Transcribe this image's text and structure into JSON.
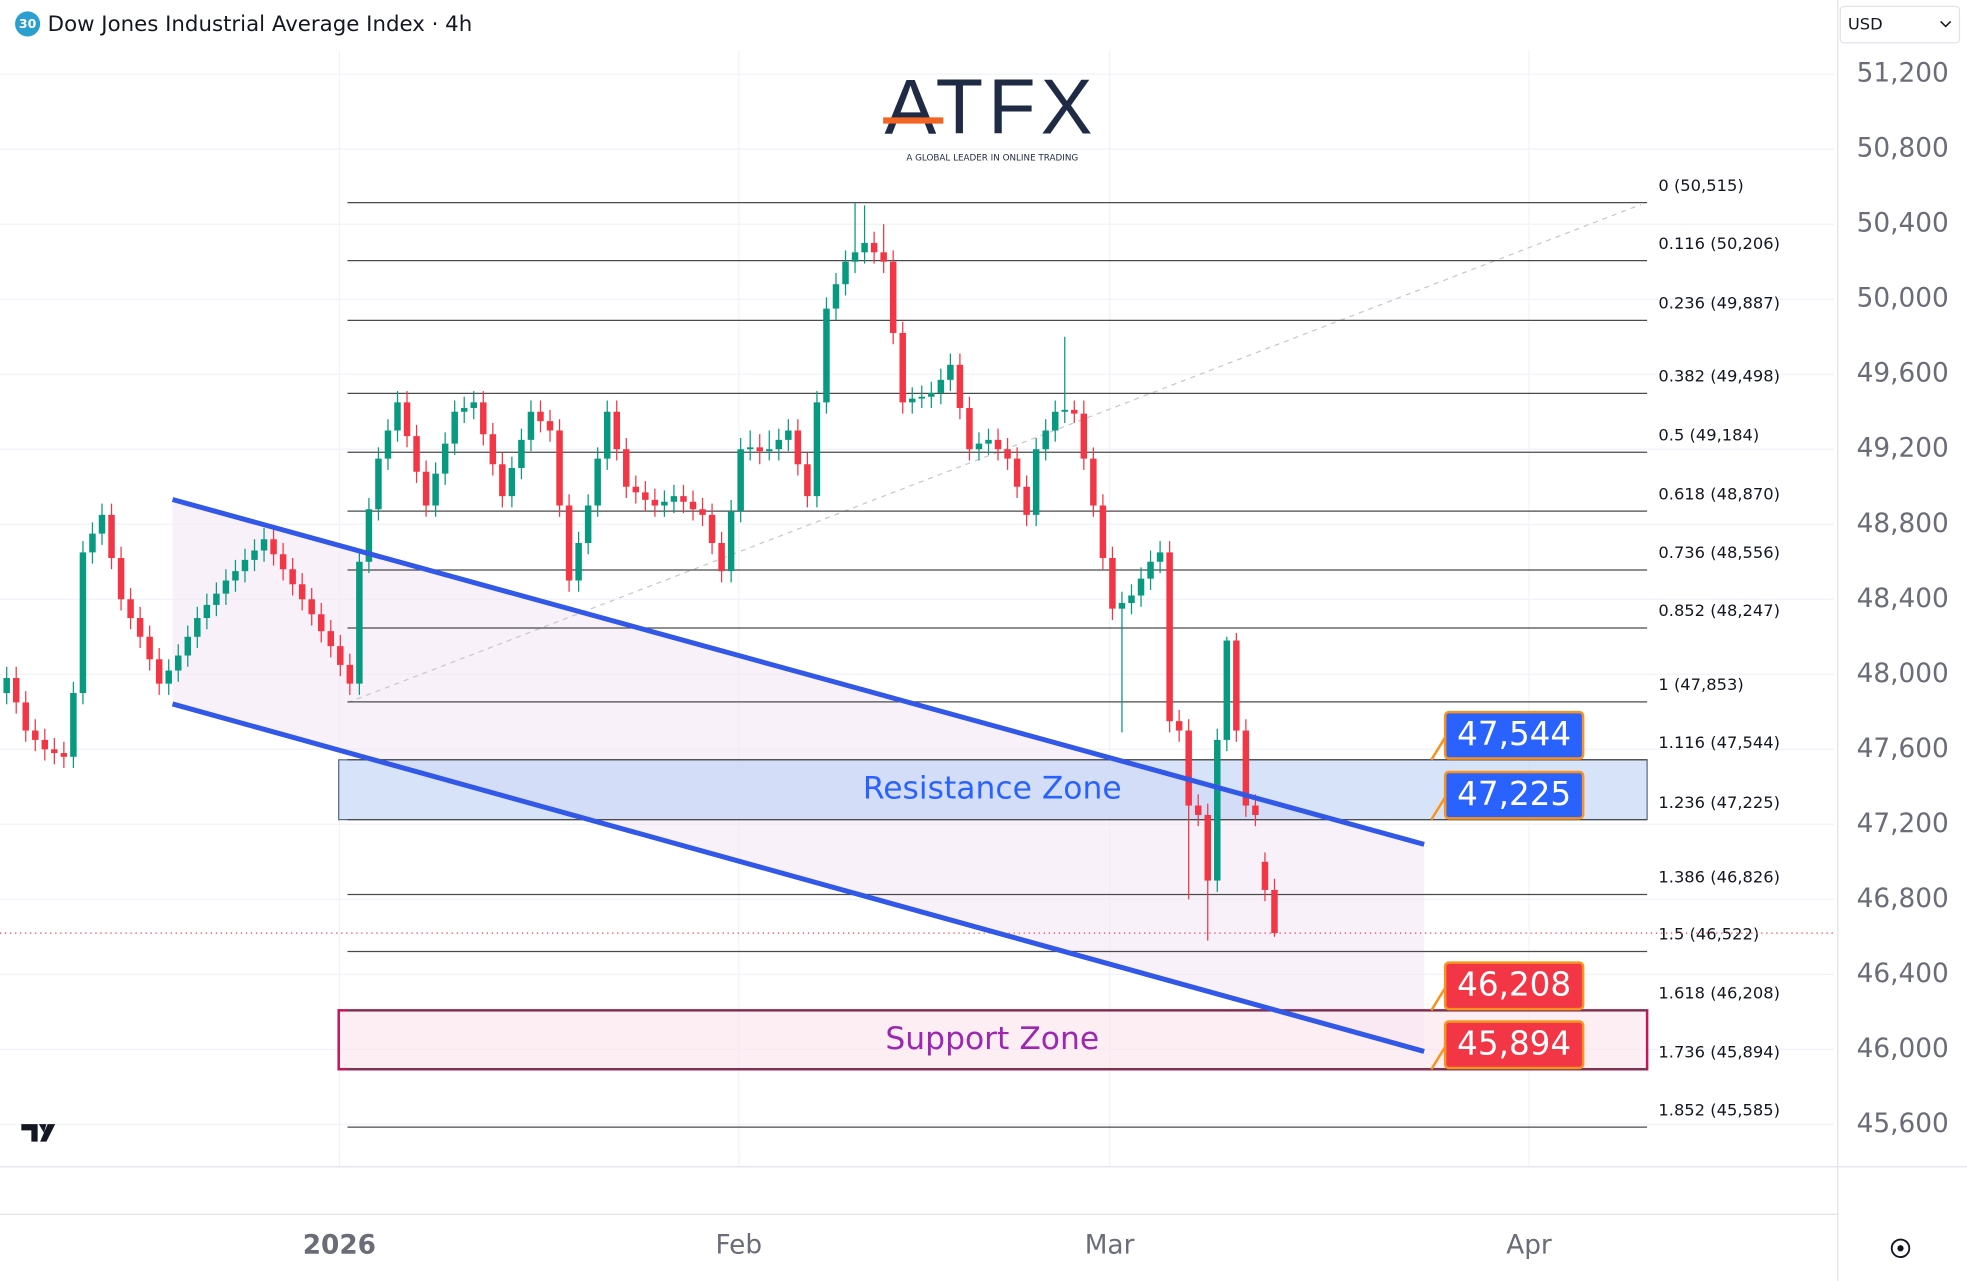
{
  "chart_data": {
    "type": "candlestick",
    "badge": "30",
    "title": "Dow Jones Industrial Average Index · 4h",
    "currency": "USD",
    "logo": {
      "name": "ATFX",
      "tagline": "A GLOBAL LEADER IN ONLINE TRADING"
    },
    "up_color": "#089981",
    "down_color": "#f23645",
    "ylim": [
      45374,
      51595
    ],
    "yticks": [
      {
        "value": 51200,
        "label": "51,200"
      },
      {
        "value": 50800,
        "label": "50,800"
      },
      {
        "value": 50400,
        "label": "50,400"
      },
      {
        "value": 50000,
        "label": "50,000"
      },
      {
        "value": 49600,
        "label": "49,600"
      },
      {
        "value": 49200,
        "label": "49,200"
      },
      {
        "value": 48800,
        "label": "48,800"
      },
      {
        "value": 48400,
        "label": "48,400"
      },
      {
        "value": 48000,
        "label": "48,000"
      },
      {
        "value": 47600,
        "label": "47,600"
      },
      {
        "value": 47200,
        "label": "47,200"
      },
      {
        "value": 46800,
        "label": "46,800"
      },
      {
        "value": 46400,
        "label": "46,400"
      },
      {
        "value": 46000,
        "label": "46,000"
      },
      {
        "value": 45600,
        "label": "45,600"
      }
    ],
    "xlim": [
      -0.7,
      191.7
    ],
    "xticks": [
      {
        "value": 34.9,
        "label": "2026"
      },
      {
        "value": 76.8,
        "label": "Feb"
      },
      {
        "value": 115.7,
        "label": "Mar"
      },
      {
        "value": 159.7,
        "label": "Apr"
      }
    ],
    "grid": true,
    "candles": [
      [
        47900,
        48040,
        47840,
        47980
      ],
      [
        47980,
        48040,
        47790,
        47850
      ],
      [
        47850,
        47910,
        47640,
        47700
      ],
      [
        47700,
        47760,
        47590,
        47650
      ],
      [
        47650,
        47710,
        47540,
        47600
      ],
      [
        47600,
        47660,
        47520,
        47580
      ],
      [
        47580,
        47640,
        47500,
        47560
      ],
      [
        47560,
        47960,
        47500,
        47900
      ],
      [
        47900,
        48710,
        47840,
        48650
      ],
      [
        48650,
        48810,
        48590,
        48750
      ],
      [
        48750,
        48910,
        48690,
        48850
      ],
      [
        48850,
        48910,
        48560,
        48620
      ],
      [
        48620,
        48680,
        48340,
        48400
      ],
      [
        48400,
        48460,
        48240,
        48300
      ],
      [
        48300,
        48360,
        48140,
        48200
      ],
      [
        48200,
        48260,
        48020,
        48080
      ],
      [
        48080,
        48140,
        47890,
        47950
      ],
      [
        47950,
        48080,
        47890,
        48020
      ],
      [
        48020,
        48160,
        47960,
        48100
      ],
      [
        48100,
        48260,
        48040,
        48200
      ],
      [
        48200,
        48360,
        48140,
        48300
      ],
      [
        48300,
        48430,
        48240,
        48370
      ],
      [
        48370,
        48490,
        48310,
        48430
      ],
      [
        48430,
        48560,
        48370,
        48500
      ],
      [
        48500,
        48610,
        48440,
        48550
      ],
      [
        48550,
        48670,
        48490,
        48610
      ],
      [
        48610,
        48720,
        48550,
        48660
      ],
      [
        48660,
        48780,
        48600,
        48720
      ],
      [
        48720,
        48780,
        48580,
        48640
      ],
      [
        48640,
        48700,
        48500,
        48560
      ],
      [
        48560,
        48620,
        48420,
        48480
      ],
      [
        48480,
        48540,
        48340,
        48400
      ],
      [
        48400,
        48460,
        48260,
        48320
      ],
      [
        48320,
        48380,
        48170,
        48230
      ],
      [
        48230,
        48290,
        48090,
        48150
      ],
      [
        48150,
        48210,
        47990,
        48050
      ],
      [
        48050,
        48110,
        47890,
        47950
      ],
      [
        47950,
        48660,
        47890,
        48600
      ],
      [
        48600,
        48940,
        48540,
        48880
      ],
      [
        48880,
        49210,
        48820,
        49150
      ],
      [
        49150,
        49360,
        49090,
        49300
      ],
      [
        49300,
        49510,
        49240,
        49450
      ],
      [
        49450,
        49510,
        49210,
        49270
      ],
      [
        49270,
        49330,
        49020,
        49080
      ],
      [
        49080,
        49140,
        48840,
        48900
      ],
      [
        48900,
        49130,
        48840,
        49070
      ],
      [
        49070,
        49290,
        49010,
        49230
      ],
      [
        49230,
        49460,
        49170,
        49400
      ],
      [
        49400,
        49480,
        49340,
        49420
      ],
      [
        49420,
        49510,
        49360,
        49450
      ],
      [
        49450,
        49510,
        49220,
        49280
      ],
      [
        49280,
        49340,
        49060,
        49120
      ],
      [
        49120,
        49180,
        48890,
        48950
      ],
      [
        48950,
        49160,
        48890,
        49100
      ],
      [
        49100,
        49310,
        49040,
        49250
      ],
      [
        49250,
        49460,
        49190,
        49400
      ],
      [
        49400,
        49460,
        49290,
        49350
      ],
      [
        49350,
        49410,
        49240,
        49300
      ],
      [
        49300,
        49360,
        48840,
        48900
      ],
      [
        48900,
        48960,
        48440,
        48500
      ],
      [
        48500,
        48760,
        48440,
        48700
      ],
      [
        48700,
        48960,
        48640,
        48900
      ],
      [
        48900,
        49210,
        48840,
        49150
      ],
      [
        49150,
        49460,
        49090,
        49400
      ],
      [
        49400,
        49460,
        49140,
        49200
      ],
      [
        49200,
        49260,
        48940,
        49000
      ],
      [
        49000,
        49060,
        48910,
        48970
      ],
      [
        48970,
        49030,
        48870,
        48930
      ],
      [
        48930,
        48990,
        48840,
        48900
      ],
      [
        48900,
        48980,
        48840,
        48920
      ],
      [
        48920,
        49010,
        48860,
        48950
      ],
      [
        48950,
        49010,
        48860,
        48920
      ],
      [
        48920,
        48980,
        48820,
        48880
      ],
      [
        48880,
        48940,
        48790,
        48850
      ],
      [
        48850,
        48910,
        48640,
        48700
      ],
      [
        48700,
        48760,
        48490,
        48550
      ],
      [
        48550,
        48930,
        48490,
        48870
      ],
      [
        48870,
        49260,
        48810,
        49200
      ],
      [
        49200,
        49300,
        49140,
        49210
      ],
      [
        49210,
        49280,
        49120,
        49190
      ],
      [
        49190,
        49300,
        49140,
        49200
      ],
      [
        49200,
        49310,
        49140,
        49250
      ],
      [
        49250,
        49360,
        49190,
        49300
      ],
      [
        49300,
        49360,
        49060,
        49120
      ],
      [
        49120,
        49180,
        48890,
        48950
      ],
      [
        48950,
        49510,
        48890,
        49450
      ],
      [
        49450,
        50010,
        49390,
        49950
      ],
      [
        49950,
        50140,
        49890,
        50080
      ],
      [
        50080,
        50260,
        50020,
        50200
      ],
      [
        50200,
        50515,
        50140,
        50250
      ],
      [
        50250,
        50500,
        50190,
        50300
      ],
      [
        50300,
        50360,
        50190,
        50250
      ],
      [
        50250,
        50400,
        50140,
        50200
      ],
      [
        50200,
        50260,
        49760,
        49820
      ],
      [
        49820,
        49880,
        49390,
        49450
      ],
      [
        49450,
        49530,
        49390,
        49470
      ],
      [
        49470,
        49540,
        49420,
        49480
      ],
      [
        49480,
        49560,
        49420,
        49500
      ],
      [
        49500,
        49630,
        49440,
        49570
      ],
      [
        49570,
        49710,
        49510,
        49650
      ],
      [
        49650,
        49710,
        49360,
        49420
      ],
      [
        49420,
        49480,
        49140,
        49200
      ],
      [
        49200,
        49290,
        49140,
        49230
      ],
      [
        49230,
        49310,
        49170,
        49250
      ],
      [
        49250,
        49310,
        49140,
        49200
      ],
      [
        49200,
        49260,
        49090,
        49150
      ],
      [
        49150,
        49210,
        48940,
        49000
      ],
      [
        49000,
        49060,
        48790,
        48850
      ],
      [
        48850,
        49260,
        48790,
        49200
      ],
      [
        49200,
        49360,
        49140,
        49300
      ],
      [
        49300,
        49460,
        49240,
        49400
      ],
      [
        49400,
        49800,
        49340,
        49410
      ],
      [
        49410,
        49460,
        49340,
        49390
      ],
      [
        49390,
        49460,
        49090,
        49150
      ],
      [
        49150,
        49210,
        48840,
        48900
      ],
      [
        48900,
        48960,
        48560,
        48620
      ],
      [
        48620,
        48680,
        48290,
        48350
      ],
      [
        48350,
        48440,
        47690,
        48380
      ],
      [
        48380,
        48480,
        48320,
        48420
      ],
      [
        48420,
        48570,
        48360,
        48510
      ],
      [
        48510,
        48660,
        48450,
        48600
      ],
      [
        48600,
        48710,
        48540,
        48650
      ],
      [
        48650,
        48710,
        47690,
        47750
      ],
      [
        47750,
        47810,
        47640,
        47700
      ],
      [
        47700,
        47760,
        46800,
        47300
      ],
      [
        47300,
        47360,
        47190,
        47250
      ],
      [
        47250,
        47310,
        46580,
        46900
      ],
      [
        46900,
        47710,
        46840,
        47650
      ],
      [
        47650,
        48200,
        47590,
        48180
      ],
      [
        48180,
        48220,
        47640,
        47700
      ],
      [
        47700,
        47760,
        47240,
        47300
      ],
      [
        47300,
        47360,
        47190,
        47250
      ],
      [
        47000,
        47050,
        46790,
        46850
      ],
      [
        46850,
        46910,
        46600,
        46620
      ]
    ],
    "fib_levels": [
      {
        "label": "0 (50,515)",
        "price": 50515
      },
      {
        "label": "0.116 (50,206)",
        "price": 50206
      },
      {
        "label": "0.236 (49,887)",
        "price": 49887
      },
      {
        "label": "0.382 (49,498)",
        "price": 49498
      },
      {
        "label": "0.5 (49,184)",
        "price": 49184
      },
      {
        "label": "0.618 (48,870)",
        "price": 48870
      },
      {
        "label": "0.736 (48,556)",
        "price": 48556
      },
      {
        "label": "0.852 (48,247)",
        "price": 48247
      },
      {
        "label": "1 (47,853)",
        "price": 47853
      },
      {
        "label": "1.116 (47,544)",
        "price": 47544
      },
      {
        "label": "1.236 (47,225)",
        "price": 47225
      },
      {
        "label": "1.386 (46,826)",
        "price": 46826
      },
      {
        "label": "1.5 (46,522)",
        "price": 46522
      },
      {
        "label": "1.618 (46,208)",
        "price": 46208
      },
      {
        "label": "1.736 (45,894)",
        "price": 45894
      },
      {
        "label": "1.852 (45,585)",
        "price": 45585
      }
    ],
    "zones": [
      {
        "name": "Resistance Zone",
        "text_color": "#2962ff",
        "fill": "#bcd0f5",
        "border": "#5b6b86",
        "tag_color": "#2962ff",
        "top": {
          "value": 47544,
          "label": "47,544"
        },
        "bottom": {
          "value": 47225,
          "label": "47,225"
        }
      },
      {
        "name": "Support Zone",
        "text_color": "#9c27b0",
        "fill": "#fbe3ec",
        "border": "#c2185b",
        "tag_color": "#f23645",
        "top": {
          "value": 46208,
          "label": "46,208"
        },
        "bottom": {
          "value": 45894,
          "label": "45,894"
        }
      }
    ],
    "channel": {
      "color": "#3158e6",
      "upper": [
        [
          17.4,
          48932
        ],
        [
          148.7,
          47093
        ]
      ],
      "lower": [
        [
          17.4,
          47842
        ],
        [
          148.7,
          45989
        ]
      ]
    }
  }
}
